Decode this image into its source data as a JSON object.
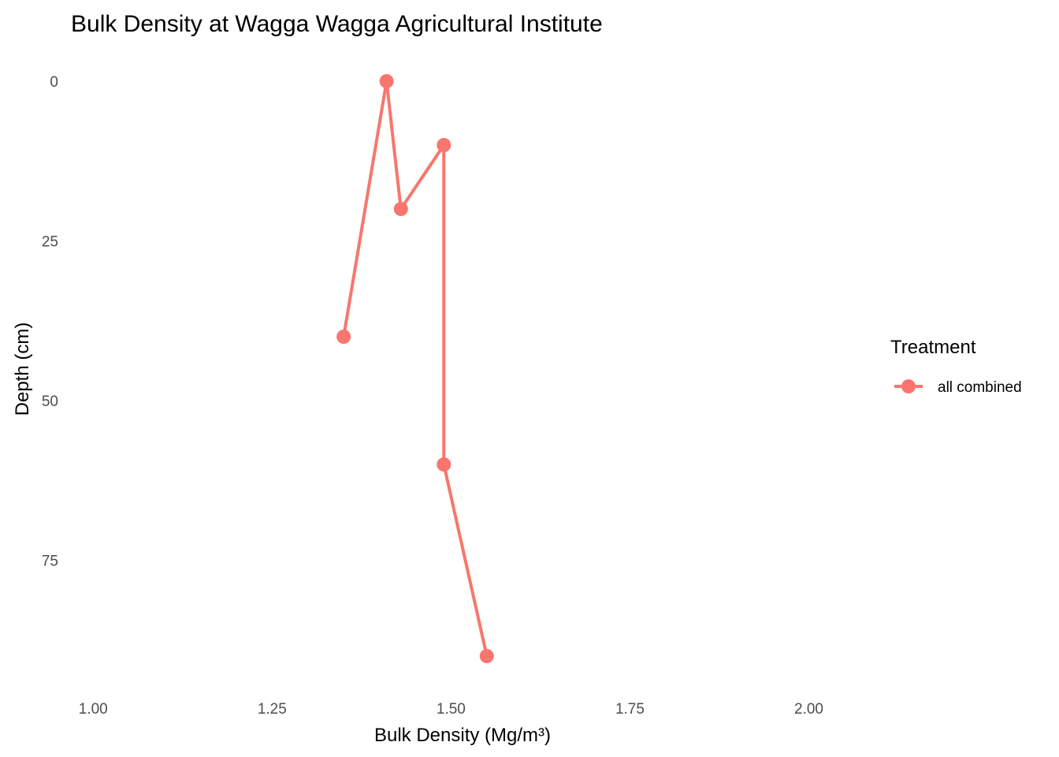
{
  "chart_data": {
    "type": "line",
    "title": "Bulk Density at Wagga Wagga Agricultural Institute",
    "xlabel": "Bulk Density (Mg/m³)",
    "ylabel": "Depth (cm)",
    "xlim": [
      0.97,
      2.06
    ],
    "ylim": [
      0,
      95
    ],
    "y_reversed": true,
    "grid": false,
    "x_ticks": [
      "1.00",
      "1.25",
      "1.50",
      "1.75",
      "2.00"
    ],
    "y_ticks": [
      "0",
      "25",
      "50",
      "75"
    ],
    "legend_title": "Treatment",
    "legend_position": "right",
    "series": [
      {
        "name": "all combined",
        "color": "#F8766D",
        "points": [
          {
            "x": 1.35,
            "y": 40
          },
          {
            "x": 1.41,
            "y": 0
          },
          {
            "x": 1.43,
            "y": 20
          },
          {
            "x": 1.49,
            "y": 10
          },
          {
            "x": 1.49,
            "y": 60
          },
          {
            "x": 1.55,
            "y": 90
          }
        ]
      }
    ]
  }
}
